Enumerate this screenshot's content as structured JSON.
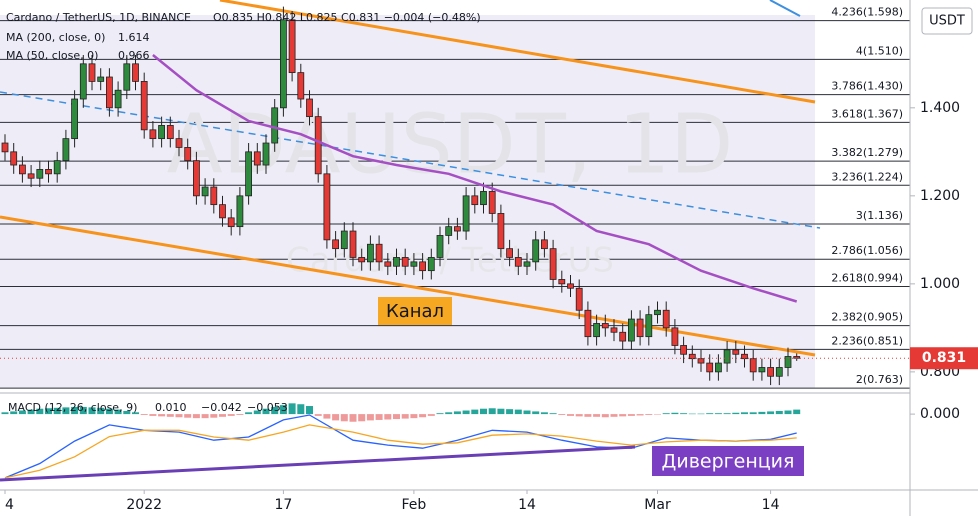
{
  "chart_data": {
    "type": "candlestick",
    "title": "Cardano / TetherUS, 1D, BINANCE",
    "ohlc_legend": "O0.835 H0.842 L0.825 C0.831 −0.004 (−0.48%)",
    "watermark": "ADAUSDT, 1D",
    "watermark_sub": "Cardano / TetherUS",
    "currency": "USDT",
    "categories": [
      "4",
      null,
      null,
      null,
      null,
      null,
      null,
      null,
      null,
      null,
      null,
      null,
      null,
      null,
      null,
      null,
      "2022",
      null,
      null,
      null,
      null,
      null,
      null,
      null,
      null,
      null,
      null,
      null,
      null,
      null,
      null,
      null,
      "17",
      null,
      null,
      null,
      null,
      null,
      null,
      null,
      null,
      null,
      null,
      null,
      null,
      null,
      null,
      "Feb",
      null,
      null,
      null,
      null,
      null,
      null,
      null,
      null,
      null,
      null,
      null,
      null,
      "14",
      null,
      null,
      null,
      null,
      null,
      null,
      null,
      null,
      null,
      null,
      null,
      null,
      null,
      null,
      "Mar",
      null,
      null,
      null,
      null,
      null,
      null,
      null,
      null,
      null,
      null,
      null,
      null,
      "14",
      null,
      null,
      null
    ],
    "open": [
      1.32,
      1.3,
      1.27,
      1.25,
      1.24,
      1.26,
      1.25,
      1.28,
      1.33,
      1.42,
      1.5,
      1.46,
      1.47,
      1.4,
      1.44,
      1.5,
      1.46,
      1.35,
      1.33,
      1.36,
      1.33,
      1.31,
      1.28,
      1.2,
      1.22,
      1.18,
      1.15,
      1.13,
      1.2,
      1.3,
      1.27,
      1.32,
      1.4,
      1.6,
      1.48,
      1.42,
      1.38,
      1.25,
      1.1,
      1.08,
      1.12,
      1.06,
      1.05,
      1.09,
      1.05,
      1.04,
      1.06,
      1.04,
      1.05,
      1.03,
      1.06,
      1.11,
      1.13,
      1.12,
      1.2,
      1.18,
      1.21,
      1.16,
      1.08,
      1.06,
      1.04,
      1.05,
      1.1,
      1.08,
      1.01,
      1.0,
      0.99,
      0.94,
      0.88,
      0.91,
      0.9,
      0.89,
      0.87,
      0.92,
      0.88,
      0.93,
      0.94,
      0.9,
      0.86,
      0.84,
      0.83,
      0.82,
      0.8,
      0.82,
      0.85,
      0.84,
      0.83,
      0.8,
      0.81,
      0.79,
      0.81,
      0.835
    ],
    "high": [
      1.34,
      1.32,
      1.29,
      1.27,
      1.28,
      1.28,
      1.3,
      1.35,
      1.44,
      1.52,
      1.52,
      1.49,
      1.49,
      1.46,
      1.52,
      1.52,
      1.48,
      1.37,
      1.38,
      1.38,
      1.35,
      1.33,
      1.3,
      1.24,
      1.24,
      1.2,
      1.17,
      1.22,
      1.32,
      1.32,
      1.34,
      1.42,
      1.63,
      1.62,
      1.5,
      1.44,
      1.4,
      1.27,
      1.12,
      1.14,
      1.14,
      1.08,
      1.11,
      1.11,
      1.07,
      1.08,
      1.08,
      1.07,
      1.07,
      1.08,
      1.13,
      1.15,
      1.15,
      1.22,
      1.22,
      1.23,
      1.23,
      1.18,
      1.1,
      1.08,
      1.07,
      1.12,
      1.12,
      1.1,
      1.03,
      1.02,
      1.01,
      0.96,
      0.93,
      0.93,
      0.92,
      0.91,
      0.94,
      0.94,
      0.95,
      0.96,
      0.96,
      0.92,
      0.88,
      0.86,
      0.85,
      0.84,
      0.84,
      0.87,
      0.87,
      0.86,
      0.85,
      0.83,
      0.83,
      0.83,
      0.855,
      0.842
    ],
    "low": [
      1.28,
      1.25,
      1.23,
      1.22,
      1.22,
      1.23,
      1.23,
      1.26,
      1.31,
      1.4,
      1.44,
      1.44,
      1.38,
      1.38,
      1.42,
      1.44,
      1.33,
      1.31,
      1.31,
      1.31,
      1.29,
      1.26,
      1.18,
      1.18,
      1.16,
      1.13,
      1.11,
      1.11,
      1.18,
      1.25,
      1.25,
      1.3,
      1.38,
      1.46,
      1.4,
      1.36,
      1.23,
      1.08,
      1.06,
      1.06,
      1.04,
      1.03,
      1.03,
      1.03,
      1.02,
      1.02,
      1.02,
      1.02,
      1.01,
      1.01,
      1.04,
      1.09,
      1.1,
      1.1,
      1.16,
      1.16,
      1.14,
      1.06,
      1.04,
      1.02,
      1.02,
      1.03,
      1.06,
      0.99,
      0.98,
      0.97,
      0.92,
      0.86,
      0.86,
      0.88,
      0.87,
      0.85,
      0.85,
      0.86,
      0.86,
      0.91,
      0.88,
      0.84,
      0.82,
      0.81,
      0.8,
      0.78,
      0.78,
      0.8,
      0.82,
      0.81,
      0.78,
      0.78,
      0.77,
      0.77,
      0.79,
      0.825
    ],
    "close": [
      1.3,
      1.27,
      1.25,
      1.24,
      1.26,
      1.25,
      1.28,
      1.33,
      1.42,
      1.5,
      1.46,
      1.47,
      1.4,
      1.44,
      1.5,
      1.46,
      1.35,
      1.33,
      1.36,
      1.33,
      1.31,
      1.28,
      1.2,
      1.22,
      1.18,
      1.15,
      1.13,
      1.2,
      1.3,
      1.27,
      1.32,
      1.4,
      1.6,
      1.48,
      1.42,
      1.38,
      1.25,
      1.1,
      1.08,
      1.12,
      1.06,
      1.05,
      1.09,
      1.05,
      1.04,
      1.06,
      1.04,
      1.05,
      1.03,
      1.06,
      1.11,
      1.13,
      1.12,
      1.2,
      1.18,
      1.21,
      1.16,
      1.08,
      1.06,
      1.04,
      1.05,
      1.1,
      1.08,
      1.01,
      1.0,
      0.99,
      0.94,
      0.88,
      0.91,
      0.9,
      0.89,
      0.87,
      0.92,
      0.88,
      0.93,
      0.94,
      0.9,
      0.86,
      0.84,
      0.83,
      0.82,
      0.8,
      0.82,
      0.85,
      0.84,
      0.83,
      0.8,
      0.81,
      0.79,
      0.81,
      0.835,
      0.831
    ],
    "up_color": "#2e8b3e",
    "down_color": "#e53935",
    "ylim": [
      0.752,
      1.645
    ],
    "yticks": [
      {
        "value": 1.4,
        "label": "1.400"
      },
      {
        "value": 1.2,
        "label": "1.200"
      },
      {
        "value": 1.0,
        "label": "1.000"
      },
      {
        "value": 0.8,
        "label": "0.800"
      }
    ],
    "fib_levels": [
      {
        "value": 1.598,
        "label": "4.236(1.598)"
      },
      {
        "value": 1.51,
        "label": "4(1.510)"
      },
      {
        "value": 1.43,
        "label": "3.786(1.430)"
      },
      {
        "value": 1.367,
        "label": "3.618(1.367)"
      },
      {
        "value": 1.279,
        "label": "3.382(1.279)"
      },
      {
        "value": 1.224,
        "label": "3.236(1.224)"
      },
      {
        "value": 1.136,
        "label": "3(1.136)"
      },
      {
        "value": 1.056,
        "label": "2.786(1.056)"
      },
      {
        "value": 0.994,
        "label": "2.618(0.994)"
      },
      {
        "value": 0.905,
        "label": "2.382(0.905)"
      },
      {
        "value": 0.851,
        "label": "2.236(0.851)"
      },
      {
        "value": 0.763,
        "label": "2(0.763)"
      }
    ],
    "ma_legend": [
      {
        "name": "MA (200, close, 0)",
        "value": "1.614",
        "color": "#2962ff"
      },
      {
        "name": "MA (50, close, 0)",
        "value": "0.966",
        "color": "#e040fb"
      }
    ],
    "ma50": {
      "color": "#a64fc4",
      "x": [
        17,
        22,
        28,
        34,
        40,
        45,
        51,
        57,
        63,
        68,
        74,
        80,
        86,
        91
      ],
      "values": [
        1.52,
        1.44,
        1.37,
        1.34,
        1.29,
        1.27,
        1.25,
        1.21,
        1.18,
        1.12,
        1.09,
        1.03,
        0.99,
        0.96
      ]
    },
    "annotations": [
      "Канал",
      "Дивергенция"
    ],
    "macd": {
      "legend": "MACD (12, 26, close, 9)",
      "legend_values": [
        "0.010",
        "−0.042",
        "−0.053"
      ],
      "ylim": [
        -0.169,
        0.047
      ],
      "yticks": [
        {
          "value": 0,
          "label": "0.000"
        }
      ],
      "x": [
        0,
        4,
        8,
        12,
        16,
        20,
        24,
        28,
        32,
        35,
        40,
        44,
        48,
        52,
        56,
        60,
        64,
        68,
        72,
        76,
        80,
        84,
        88,
        91
      ],
      "series": [
        {
          "name": "MACD",
          "color": "#2962ff",
          "values": [
            -0.142,
            -0.11,
            -0.06,
            -0.024,
            -0.036,
            -0.04,
            -0.058,
            -0.051,
            -0.013,
            -0.002,
            -0.058,
            -0.069,
            -0.076,
            -0.058,
            -0.036,
            -0.04,
            -0.058,
            -0.073,
            -0.076,
            -0.053,
            -0.058,
            -0.06,
            -0.056,
            -0.042
          ]
        },
        {
          "name": "Signal",
          "color": "#f5a623",
          "values": [
            -0.142,
            -0.125,
            -0.095,
            -0.05,
            -0.036,
            -0.036,
            -0.051,
            -0.058,
            -0.04,
            -0.024,
            -0.04,
            -0.058,
            -0.067,
            -0.064,
            -0.047,
            -0.044,
            -0.049,
            -0.06,
            -0.069,
            -0.062,
            -0.058,
            -0.06,
            -0.058,
            -0.053
          ]
        }
      ],
      "histogram": [
        0.004,
        0.006,
        0.008,
        0.01,
        0.012,
        0.013,
        0.014,
        0.015,
        0.016,
        0.016,
        0.015,
        0.014,
        0.012,
        0.01,
        0.007,
        0.004,
        -0.002,
        -0.004,
        -0.005,
        -0.006,
        -0.007,
        -0.008,
        -0.009,
        -0.009,
        -0.008,
        -0.006,
        -0.004,
        -0.002,
        0.004,
        0.008,
        0.012,
        0.016,
        0.02,
        0.024,
        0.022,
        0.018,
        -0.004,
        -0.01,
        -0.014,
        -0.016,
        -0.017,
        -0.016,
        -0.014,
        -0.013,
        -0.012,
        -0.011,
        -0.01,
        -0.009,
        -0.007,
        -0.004,
        0.002,
        0.004,
        0.006,
        0.008,
        0.01,
        0.012,
        0.013,
        0.012,
        0.011,
        0.01,
        0.008,
        0.006,
        0.004,
        0.002,
        -0.002,
        -0.004,
        -0.005,
        -0.006,
        -0.006,
        -0.007,
        -0.006,
        -0.005,
        -0.004,
        -0.003,
        -0.002,
        -0.001,
        0.002,
        0.003,
        0.002,
        0.001,
        0.001,
        0.002,
        0.002,
        0.002,
        0.003,
        0.004,
        0.004,
        0.005,
        0.006,
        0.007,
        0.008,
        0.01
      ],
      "pos_color": "#26a69a",
      "neg_color": "#ef9a9a"
    }
  }
}
